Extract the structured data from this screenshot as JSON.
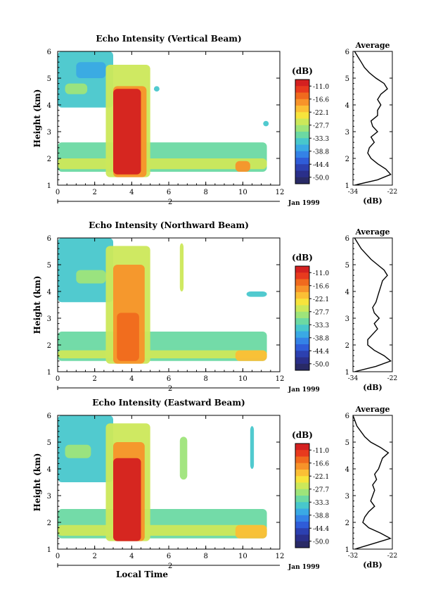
{
  "figure": {
    "date_label": "Jan 1999",
    "xlabel": "Local Time"
  },
  "colorbar": {
    "unit": "(dB)",
    "ticks": [
      "-11.0",
      "-16.6",
      "-22.1",
      "-27.7",
      "-33.3",
      "-38.8",
      "-44.4",
      "-50.0"
    ],
    "colors": [
      "#d42020",
      "#e83a1e",
      "#f06a1e",
      "#f7932a",
      "#fbbf35",
      "#f7e43c",
      "#cce85a",
      "#9ee47a",
      "#6cd9a3",
      "#48c7cc",
      "#3aa9e4",
      "#3482e6",
      "#2f5cd8",
      "#2c40b0",
      "#2a2f8a",
      "#292a66"
    ]
  },
  "chart_data": [
    {
      "type": "heatmap",
      "title": "Echo Intensity (Vertical Beam)",
      "xlabel": "",
      "ylabel": "Height (km)",
      "xlim": [
        0,
        12
      ],
      "ylim": [
        1,
        6
      ],
      "xticks": [
        "0",
        "2",
        "4",
        "6",
        "8",
        "10",
        "12"
      ],
      "yticks": [
        "1",
        "2",
        "3",
        "4",
        "5",
        "6"
      ],
      "day_marker": "2",
      "patches": [
        {
          "x": [
            0,
            3.0
          ],
          "y": [
            3.9,
            6.0
          ],
          "level": 9
        },
        {
          "x": [
            0.4,
            1.6
          ],
          "y": [
            4.4,
            4.8
          ],
          "level": 7
        },
        {
          "x": [
            1.0,
            2.6
          ],
          "y": [
            5.0,
            5.6
          ],
          "level": 10
        },
        {
          "x": [
            0,
            11.3
          ],
          "y": [
            1.5,
            2.6
          ],
          "level": 8
        },
        {
          "x": [
            0,
            11.3
          ],
          "y": [
            1.6,
            2.0
          ],
          "level": 6
        },
        {
          "x": [
            9.6,
            10.4
          ],
          "y": [
            1.5,
            1.9
          ],
          "level": 3
        },
        {
          "x": [
            2.6,
            5.0
          ],
          "y": [
            1.3,
            5.5
          ],
          "level": 6
        },
        {
          "x": [
            3.0,
            4.8
          ],
          "y": [
            1.3,
            4.7
          ],
          "level": 3
        },
        {
          "x": [
            3.0,
            4.5
          ],
          "y": [
            1.4,
            4.6
          ],
          "level": 0
        },
        {
          "x": [
            5.2,
            5.5
          ],
          "y": [
            4.5,
            4.7
          ],
          "level": 9
        },
        {
          "x": [
            11.1,
            11.4
          ],
          "y": [
            3.2,
            3.4
          ],
          "level": 9
        }
      ],
      "average": {
        "xlim": [
          -34,
          -22
        ],
        "xticks": [
          "-34",
          "-22"
        ],
        "ylim": [
          1,
          6
        ],
        "xlabel": "(dB)",
        "title": "Average",
        "y": [
          1.0,
          1.2,
          1.4,
          1.6,
          1.8,
          2.0,
          2.2,
          2.4,
          2.6,
          2.8,
          3.0,
          3.2,
          3.4,
          3.6,
          3.8,
          4.0,
          4.2,
          4.4,
          4.6,
          4.8,
          5.0,
          5.2,
          5.4,
          5.6,
          5.8,
          6.0
        ],
        "x": [
          -33.5,
          -26.5,
          -22.5,
          -24.0,
          -26.5,
          -28.5,
          -29.5,
          -29.0,
          -27.5,
          -28.5,
          -26.5,
          -28.0,
          -28.5,
          -26.5,
          -26.5,
          -25.5,
          -26.5,
          -25.5,
          -23.5,
          -24.5,
          -27.0,
          -29.0,
          -30.5,
          -31.5,
          -32.5,
          -33.5
        ]
      }
    },
    {
      "type": "heatmap",
      "title": "Echo Intensity (Northward Beam)",
      "xlabel": "",
      "ylabel": "Height (km)",
      "xlim": [
        0,
        12
      ],
      "ylim": [
        1,
        6
      ],
      "xticks": [
        "0",
        "2",
        "4",
        "6",
        "8",
        "10",
        "12"
      ],
      "yticks": [
        "1",
        "2",
        "3",
        "4",
        "5",
        "6"
      ],
      "day_marker": "2",
      "patches": [
        {
          "x": [
            0,
            3.0
          ],
          "y": [
            3.6,
            6.0
          ],
          "level": 9
        },
        {
          "x": [
            1.0,
            2.6
          ],
          "y": [
            4.3,
            4.8
          ],
          "level": 7
        },
        {
          "x": [
            0,
            11.3
          ],
          "y": [
            1.4,
            2.5
          ],
          "level": 8
        },
        {
          "x": [
            0,
            11.3
          ],
          "y": [
            1.5,
            1.8
          ],
          "level": 6
        },
        {
          "x": [
            9.6,
            11.3
          ],
          "y": [
            1.4,
            1.8
          ],
          "level": 4
        },
        {
          "x": [
            2.6,
            5.0
          ],
          "y": [
            1.3,
            5.7
          ],
          "level": 6
        },
        {
          "x": [
            3.0,
            4.7
          ],
          "y": [
            1.3,
            5.0
          ],
          "level": 3
        },
        {
          "x": [
            3.2,
            4.4
          ],
          "y": [
            1.4,
            3.2
          ],
          "level": 2
        },
        {
          "x": [
            6.6,
            6.8
          ],
          "y": [
            4.0,
            5.8
          ],
          "level": 6
        },
        {
          "x": [
            10.2,
            11.3
          ],
          "y": [
            3.8,
            4.0
          ],
          "level": 9
        }
      ],
      "average": {
        "xlim": [
          -34,
          -22
        ],
        "xticks": [
          "-34",
          "-22"
        ],
        "ylim": [
          1,
          6
        ],
        "xlabel": "(dB)",
        "title": "Average",
        "y": [
          1.0,
          1.2,
          1.4,
          1.6,
          1.8,
          2.0,
          2.2,
          2.4,
          2.6,
          2.8,
          3.0,
          3.2,
          3.4,
          3.6,
          3.8,
          4.0,
          4.2,
          4.4,
          4.6,
          4.8,
          5.0,
          5.2,
          5.4,
          5.6,
          5.8,
          6.0
        ],
        "x": [
          -33.5,
          -27.0,
          -22.5,
          -24.5,
          -27.5,
          -29.5,
          -29.5,
          -28.0,
          -26.5,
          -27.5,
          -26.0,
          -27.5,
          -28.0,
          -27.0,
          -26.5,
          -26.0,
          -25.5,
          -25.0,
          -23.5,
          -24.5,
          -26.5,
          -28.5,
          -30.0,
          -31.5,
          -32.5,
          -33.5
        ]
      }
    },
    {
      "type": "heatmap",
      "title": "Echo Intensity (Eastward Beam)",
      "xlabel": "Local Time",
      "ylabel": "Height (km)",
      "xlim": [
        0,
        12
      ],
      "ylim": [
        1,
        6
      ],
      "xticks": [
        "0",
        "2",
        "4",
        "6",
        "8",
        "10",
        "12"
      ],
      "yticks": [
        "1",
        "2",
        "3",
        "4",
        "5",
        "6"
      ],
      "day_marker": "2",
      "patches": [
        {
          "x": [
            0,
            3.0
          ],
          "y": [
            3.5,
            6.0
          ],
          "level": 9
        },
        {
          "x": [
            0.4,
            1.8
          ],
          "y": [
            4.4,
            4.9
          ],
          "level": 7
        },
        {
          "x": [
            0,
            11.3
          ],
          "y": [
            1.4,
            2.5
          ],
          "level": 8
        },
        {
          "x": [
            0,
            11.3
          ],
          "y": [
            1.5,
            1.9
          ],
          "level": 6
        },
        {
          "x": [
            9.6,
            11.3
          ],
          "y": [
            1.4,
            1.9
          ],
          "level": 4
        },
        {
          "x": [
            2.6,
            5.0
          ],
          "y": [
            1.3,
            5.7
          ],
          "level": 6
        },
        {
          "x": [
            3.0,
            4.7
          ],
          "y": [
            1.3,
            5.0
          ],
          "level": 3
        },
        {
          "x": [
            3.0,
            4.5
          ],
          "y": [
            1.3,
            4.4
          ],
          "level": 0
        },
        {
          "x": [
            6.6,
            7.0
          ],
          "y": [
            3.6,
            5.2
          ],
          "level": 7
        },
        {
          "x": [
            10.4,
            10.6
          ],
          "y": [
            4.0,
            5.6
          ],
          "level": 9
        }
      ],
      "average": {
        "xlim": [
          -32,
          -22
        ],
        "xticks": [
          "-32",
          "-22"
        ],
        "ylim": [
          1,
          6
        ],
        "xlabel": "(dB)",
        "title": "Average",
        "y": [
          1.0,
          1.2,
          1.4,
          1.6,
          1.8,
          2.0,
          2.2,
          2.4,
          2.6,
          2.8,
          3.0,
          3.2,
          3.4,
          3.6,
          3.8,
          4.0,
          4.2,
          4.4,
          4.6,
          4.8,
          5.0,
          5.2,
          5.4,
          5.6,
          5.8,
          6.0
        ],
        "x": [
          -31.5,
          -27.0,
          -22.5,
          -25.0,
          -28.0,
          -29.5,
          -29.0,
          -28.0,
          -26.5,
          -27.5,
          -27.0,
          -26.5,
          -27.0,
          -26.0,
          -26.5,
          -25.5,
          -25.0,
          -24.5,
          -23.0,
          -25.0,
          -27.5,
          -29.0,
          -30.0,
          -31.0,
          -31.5,
          -32.0
        ]
      }
    }
  ]
}
